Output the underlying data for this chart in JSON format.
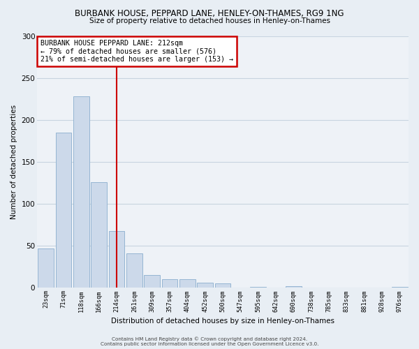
{
  "title1": "BURBANK HOUSE, PEPPARD LANE, HENLEY-ON-THAMES, RG9 1NG",
  "title2": "Size of property relative to detached houses in Henley-on-Thames",
  "xlabel": "Distribution of detached houses by size in Henley-on-Thames",
  "ylabel": "Number of detached properties",
  "bin_labels": [
    "23sqm",
    "71sqm",
    "118sqm",
    "166sqm",
    "214sqm",
    "261sqm",
    "309sqm",
    "357sqm",
    "404sqm",
    "452sqm",
    "500sqm",
    "547sqm",
    "595sqm",
    "642sqm",
    "690sqm",
    "738sqm",
    "785sqm",
    "833sqm",
    "881sqm",
    "928sqm",
    "976sqm"
  ],
  "bar_values": [
    47,
    185,
    228,
    126,
    68,
    41,
    15,
    10,
    10,
    6,
    5,
    0,
    1,
    0,
    2,
    0,
    0,
    0,
    0,
    0,
    1
  ],
  "bar_color": "#ccd9ea",
  "bar_edge_color": "#8aaece",
  "property_line_label": "BURBANK HOUSE PEPPARD LANE: 212sqm",
  "annotation_line1": "← 79% of detached houses are smaller (576)",
  "annotation_line2": "21% of semi-detached houses are larger (153) →",
  "ylim": [
    0,
    300
  ],
  "yticks": [
    0,
    50,
    100,
    150,
    200,
    250,
    300
  ],
  "footer1": "Contains HM Land Registry data © Crown copyright and database right 2024.",
  "footer2": "Contains public sector information licensed under the Open Government Licence v3.0.",
  "annotation_box_color": "#cc0000",
  "grid_color": "#c8d4e0",
  "bg_color": "#e8eef4",
  "plot_bg_color": "#eef2f7"
}
